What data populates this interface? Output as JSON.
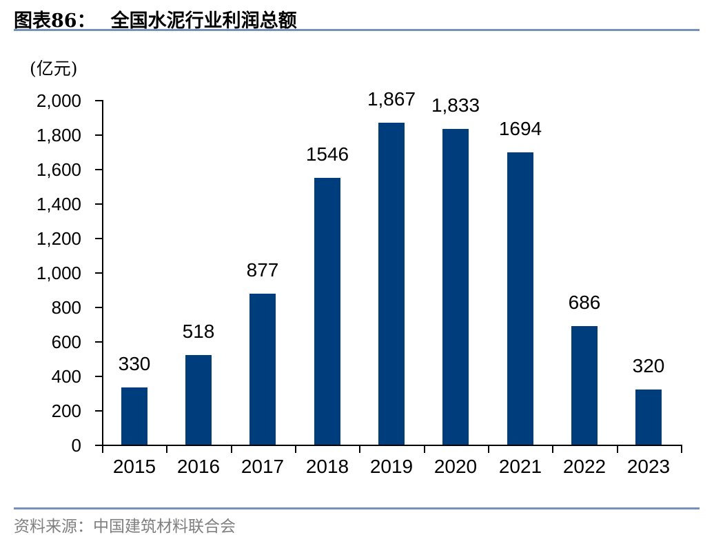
{
  "header": {
    "figure_label": "图表86：",
    "title": "全国水泥行业利润总额"
  },
  "chart_data": {
    "type": "bar",
    "title": "全国水泥行业利润总额",
    "unit_label": "(亿元)",
    "categories": [
      "2015",
      "2016",
      "2017",
      "2018",
      "2019",
      "2020",
      "2021",
      "2022",
      "2023"
    ],
    "values": [
      330,
      518,
      877,
      1546,
      1867,
      1833,
      1694,
      686,
      320
    ],
    "value_labels": [
      "330",
      "518",
      "877",
      "1546",
      "1,867",
      "1,833",
      "1694",
      "686",
      "320"
    ],
    "ylabel": "(亿元)",
    "xlabel": "",
    "ylim": [
      0,
      2000
    ],
    "ytick_interval": 200,
    "ytick_labels": [
      "0",
      "200",
      "400",
      "600",
      "800",
      "1,000",
      "1,200",
      "1,400",
      "1,600",
      "1,800",
      "2,000"
    ],
    "grid": false,
    "legend": "none",
    "bar_color": "#003D7C",
    "axis_color": "#000000"
  },
  "footer": {
    "source": "资料来源：中国建筑材料联合会"
  },
  "colors": {
    "rule": "#7590BB",
    "bar": "#003D7C",
    "source_text": "#7F7F7F"
  }
}
